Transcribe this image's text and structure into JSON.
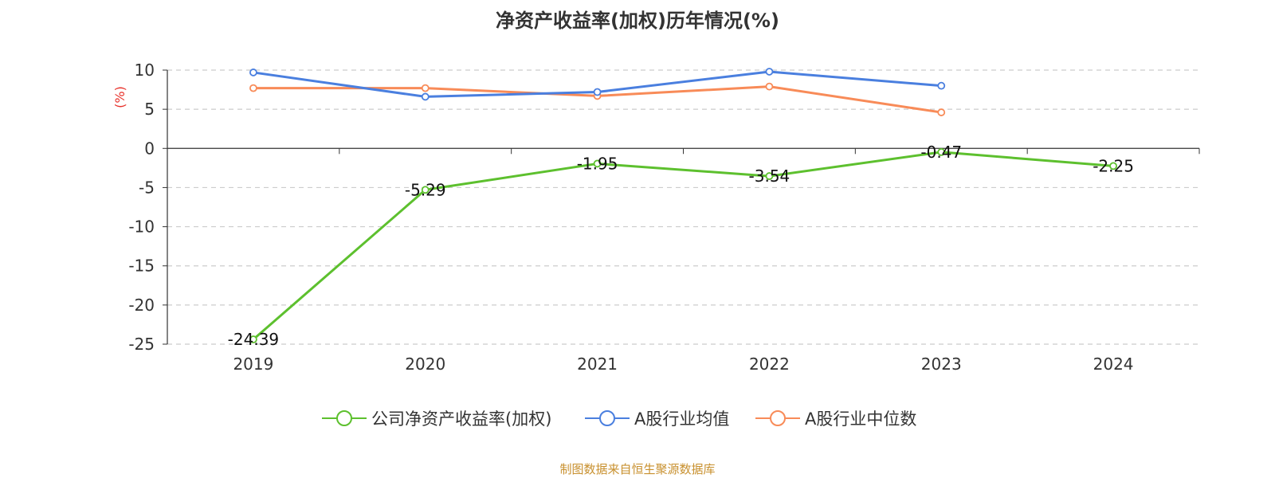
{
  "chart_data": {
    "type": "line",
    "title": "净资产收益率(加权)历年情况(%)",
    "ylabel": "(%)",
    "categories": [
      "2019",
      "2020",
      "2021",
      "2022",
      "2023",
      "2024"
    ],
    "ylim": [
      -25,
      10
    ],
    "yticks": [
      10,
      5,
      0,
      -5,
      -10,
      -15,
      -20,
      -25
    ],
    "grid": true,
    "legend_position": "bottom",
    "series": [
      {
        "name": "公司净资产收益率(加权)",
        "color": "#5dc02e",
        "values": [
          -24.39,
          -5.29,
          -1.95,
          -3.54,
          -0.47,
          -2.25
        ],
        "labels": [
          "-24.39",
          "-5.29",
          "-1.95",
          "-3.54",
          "-0.47",
          "-2.25"
        ]
      },
      {
        "name": "A股行业均值",
        "color": "#4a7fdf",
        "values": [
          9.7,
          6.6,
          7.2,
          9.8,
          8.0,
          null
        ]
      },
      {
        "name": "A股行业中位数",
        "color": "#f88b58",
        "values": [
          7.7,
          7.7,
          6.7,
          7.9,
          4.6,
          null
        ]
      }
    ]
  },
  "source_note": "制图数据来自恒生聚源数据库",
  "colors": {
    "axis": "#333333",
    "grid": "#cccccc",
    "ylabel": "#e8322b",
    "source": "#c8902e"
  }
}
